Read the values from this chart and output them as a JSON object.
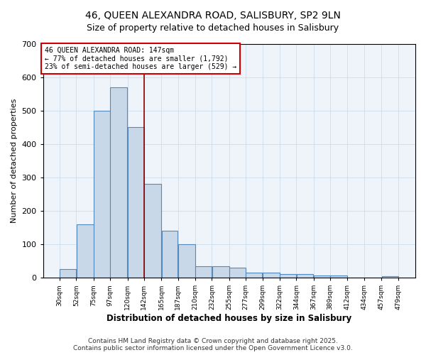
{
  "title_line1": "46, QUEEN ALEXANDRA ROAD, SALISBURY, SP2 9LN",
  "title_line2": "Size of property relative to detached houses in Salisbury",
  "xlabel": "Distribution of detached houses by size in Salisbury",
  "ylabel": "Number of detached properties",
  "bar_left_edges": [
    30,
    52,
    75,
    97,
    120,
    142,
    165,
    187,
    210,
    232,
    255,
    277,
    299,
    322,
    344,
    367,
    389,
    412,
    434,
    457
  ],
  "bar_heights": [
    25,
    160,
    500,
    570,
    450,
    280,
    140,
    100,
    35,
    35,
    30,
    15,
    15,
    10,
    10,
    7,
    7,
    0,
    0,
    5
  ],
  "bar_color": "#c8d8e8",
  "bar_edgecolor": "#5588bb",
  "bar_linewidth": 0.8,
  "vline_x": 142,
  "vline_color": "#880000",
  "vline_linewidth": 1.2,
  "annotation_text": "46 QUEEN ALEXANDRA ROAD: 147sqm\n← 77% of detached houses are smaller (1,792)\n23% of semi-detached houses are larger (529) →",
  "annotation_box_color": "white",
  "annotation_box_edgecolor": "#cc0000",
  "annotation_fontsize": 7,
  "ylim": [
    0,
    700
  ],
  "yticks": [
    0,
    100,
    200,
    300,
    400,
    500,
    600,
    700
  ],
  "xlim": [
    8,
    502
  ],
  "xtick_labels": [
    "30sqm",
    "52sqm",
    "75sqm",
    "97sqm",
    "120sqm",
    "142sqm",
    "165sqm",
    "187sqm",
    "210sqm",
    "232sqm",
    "255sqm",
    "277sqm",
    "299sqm",
    "322sqm",
    "344sqm",
    "367sqm",
    "389sqm",
    "412sqm",
    "434sqm",
    "457sqm",
    "479sqm"
  ],
  "xtick_positions": [
    30,
    52,
    75,
    97,
    120,
    142,
    165,
    187,
    210,
    232,
    255,
    277,
    299,
    322,
    344,
    367,
    389,
    412,
    434,
    457,
    479
  ],
  "grid_color": "#ccddee",
  "background_color": "#eef4fa",
  "fig_background": "#ffffff",
  "footer_text": "Contains HM Land Registry data © Crown copyright and database right 2025.\nContains public sector information licensed under the Open Government Licence v3.0.",
  "footer_fontsize": 6.5,
  "title_fontsize1": 10,
  "title_fontsize2": 9
}
